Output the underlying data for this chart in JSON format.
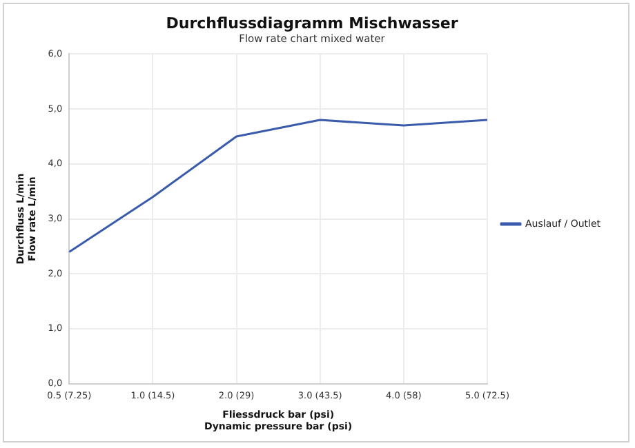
{
  "chart_data": {
    "type": "line",
    "title": "Durchflussdiagramm Mischwasser",
    "subtitle": "Flow rate chart mixed water",
    "xlabel": "Fliessdruck bar (psi)\nDynamic pressure bar (psi)",
    "ylabel": "Durchfluss L/min\nFlow rate L/min",
    "categories": [
      "0.5 (7.25)",
      "1.0 (14.5)",
      "2.0 (29)",
      "3.0 (43.5)",
      "4.0 (58)",
      "5.0 (72.5)"
    ],
    "series": [
      {
        "name": "Auslauf / Outlet",
        "color": "#3a5bab",
        "values": [
          2.4,
          3.4,
          4.5,
          4.8,
          4.7,
          4.8
        ]
      }
    ],
    "ylim": [
      0,
      6
    ],
    "yticks": [
      {
        "value": 0,
        "label": "0,0"
      },
      {
        "value": 1,
        "label": "1,0"
      },
      {
        "value": 2,
        "label": "2,0"
      },
      {
        "value": 3,
        "label": "3,0"
      },
      {
        "value": 4,
        "label": "4,0"
      },
      {
        "value": 5,
        "label": "5,0"
      },
      {
        "value": 6,
        "label": "6,0"
      }
    ],
    "grid": true,
    "legend": "right",
    "marker": "none",
    "line_style": "solid"
  }
}
